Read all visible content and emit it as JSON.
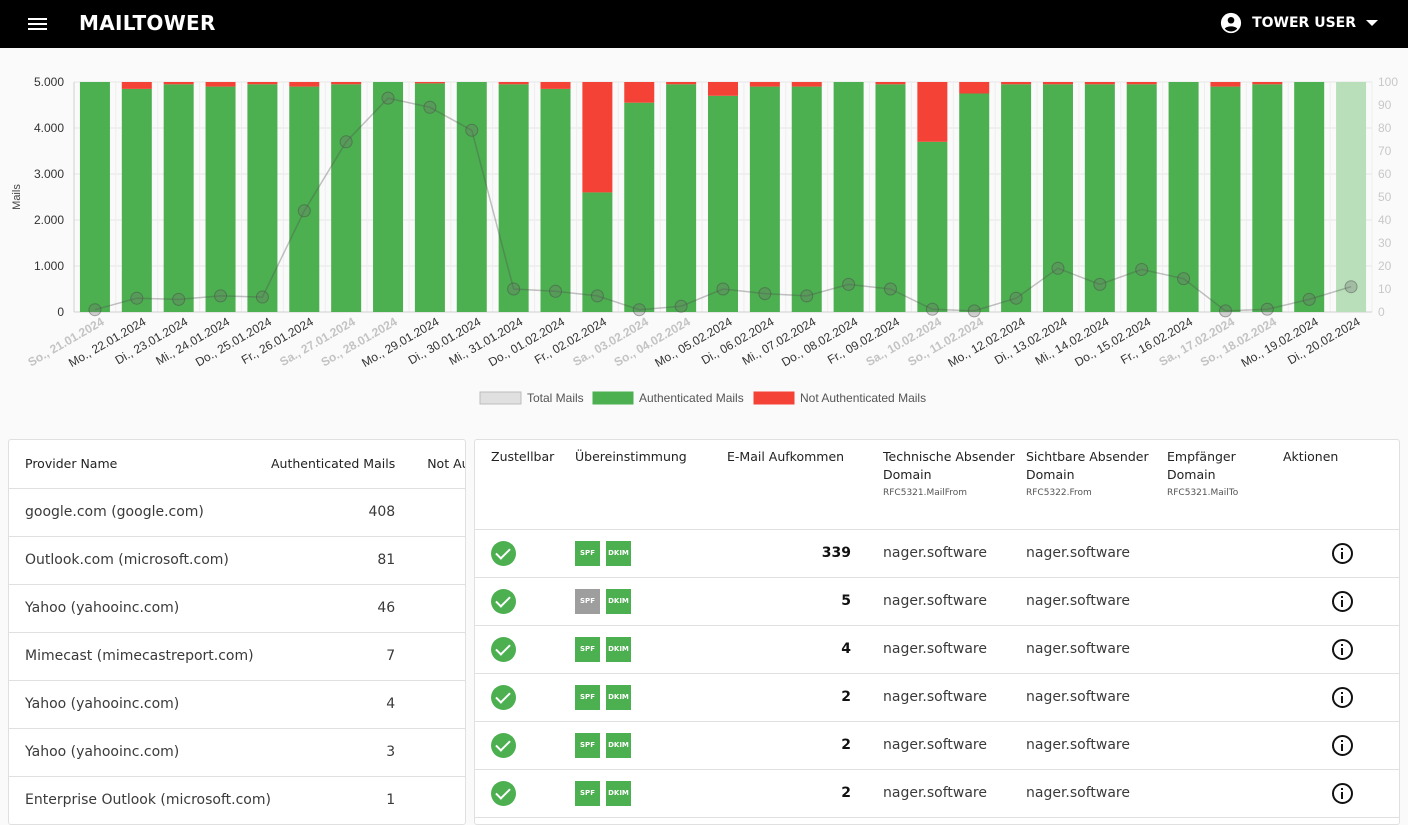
{
  "app": {
    "title": "MAILTOWER",
    "user": "TOWER USER"
  },
  "chart_data": {
    "type": "bar",
    "ylabel": "Mails",
    "y_left_lim": [
      0,
      5000
    ],
    "y_left_ticks": [
      "0",
      "1.000",
      "2.000",
      "3.000",
      "4.000",
      "5.000"
    ],
    "y_right_lim": [
      0,
      100
    ],
    "y_right_ticks": [
      "0",
      "10",
      "20",
      "30",
      "40",
      "50",
      "60",
      "70",
      "80",
      "90",
      "100"
    ],
    "stacked": true,
    "categories": [
      "So., 21.01.2024",
      "Mo., 22.01.2024",
      "Di., 23.01.2024",
      "Mi., 24.01.2024",
      "Do., 25.01.2024",
      "Fr., 26.01.2024",
      "Sa., 27.01.2024",
      "So., 28.01.2024",
      "Mo., 29.01.2024",
      "Di., 30.01.2024",
      "Mi., 31.01.2024",
      "Do., 01.02.2024",
      "Fr., 02.02.2024",
      "Sa., 03.02.2024",
      "So., 04.02.2024",
      "Mo., 05.02.2024",
      "Di., 06.02.2024",
      "Mi., 07.02.2024",
      "Do., 08.02.2024",
      "Fr., 09.02.2024",
      "Sa., 10.02.2024",
      "So., 11.02.2024",
      "Mo., 12.02.2024",
      "Di., 13.02.2024",
      "Mi., 14.02.2024",
      "Do., 15.02.2024",
      "Fr., 16.02.2024",
      "Sa., 17.02.2024",
      "So., 18.02.2024",
      "Mo., 19.02.2024",
      "Di., 20.02.2024"
    ],
    "weekend": [
      true,
      false,
      false,
      false,
      false,
      false,
      true,
      true,
      false,
      false,
      false,
      false,
      false,
      true,
      true,
      false,
      false,
      false,
      false,
      false,
      true,
      true,
      false,
      false,
      false,
      false,
      false,
      true,
      true,
      false,
      false
    ],
    "series": [
      {
        "name": "Total Mails",
        "axis": "right",
        "type": "line",
        "color": "#9e9e9e",
        "values": [
          1,
          6,
          5.5,
          7,
          6.5,
          44,
          74,
          93,
          89,
          79,
          10,
          9,
          7,
          1,
          2.5,
          10,
          8,
          7,
          12,
          10,
          1.2,
          0.5,
          6,
          19,
          12,
          18.5,
          14.5,
          0.5,
          1.2,
          5.5,
          11
        ]
      },
      {
        "name": "Authenticated Mails",
        "axis": "left",
        "color": "#4caf50",
        "values": [
          5000,
          4850,
          4950,
          4900,
          4950,
          4900,
          4950,
          5000,
          4970,
          5000,
          4950,
          4850,
          2600,
          4550,
          4950,
          4700,
          4900,
          4900,
          5000,
          4950,
          3700,
          4750,
          4950,
          4950,
          4950,
          4950,
          5000,
          4900,
          4950,
          5000,
          5000
        ]
      },
      {
        "name": "Not Authenticated Mails",
        "axis": "left",
        "color": "#f44336",
        "values": [
          0,
          150,
          50,
          100,
          50,
          100,
          50,
          0,
          30,
          0,
          50,
          150,
          2400,
          450,
          50,
          300,
          100,
          100,
          0,
          50,
          1300,
          250,
          50,
          50,
          50,
          50,
          0,
          100,
          50,
          0,
          0
        ]
      }
    ],
    "last_bar_faded": true,
    "legend": [
      "Total Mails",
      "Authenticated Mails",
      "Not Authenticated Mails"
    ],
    "legend_position": "bottom"
  },
  "providers": {
    "headers": [
      "Provider Name",
      "Authenticated Mails",
      "Not Authenticated Mails"
    ],
    "rows": [
      {
        "name": "google.com (google.com)",
        "auth": "408"
      },
      {
        "name": "Outlook.com (microsoft.com)",
        "auth": "81"
      },
      {
        "name": "Yahoo (yahooinc.com)",
        "auth": "46"
      },
      {
        "name": "Mimecast (mimecastreport.com)",
        "auth": "7"
      },
      {
        "name": "Yahoo (yahooinc.com)",
        "auth": "4"
      },
      {
        "name": "Yahoo (yahooinc.com)",
        "auth": "3"
      },
      {
        "name": "Enterprise Outlook (microsoft.com)",
        "auth": "1"
      }
    ]
  },
  "reports": {
    "headers": {
      "deliverable": "Zustellbar",
      "match": "Übereinstimmung",
      "volume": "E-Mail Aufkommen",
      "tech": "Technische Absender Domain",
      "tech_sub": "RFC5321.MailFrom",
      "visible": "Sichtbare Absender Domain",
      "visible_sub": "RFC5322.From",
      "recipient": "Empfänger Domain",
      "recipient_sub": "RFC5321.MailTo",
      "actions": "Aktionen"
    },
    "spf_label": "SPF",
    "dkim_label": "DKIM",
    "rows": [
      {
        "volume": "339",
        "tech": "nager.software",
        "visible": "nager.software",
        "spf": "pass",
        "dkim": "pass"
      },
      {
        "volume": "5",
        "tech": "nager.software",
        "visible": "nager.software",
        "spf": "fail",
        "dkim": "pass"
      },
      {
        "volume": "4",
        "tech": "nager.software",
        "visible": "nager.software",
        "spf": "pass",
        "dkim": "pass"
      },
      {
        "volume": "2",
        "tech": "nager.software",
        "visible": "nager.software",
        "spf": "pass",
        "dkim": "pass"
      },
      {
        "volume": "2",
        "tech": "nager.software",
        "visible": "nager.software",
        "spf": "pass",
        "dkim": "pass"
      },
      {
        "volume": "2",
        "tech": "nager.software",
        "visible": "nager.software",
        "spf": "pass",
        "dkim": "pass"
      }
    ]
  },
  "icons": {
    "menu": "menu-icon",
    "user": "account-circle-icon",
    "caret": "arrow-drop-down-icon",
    "check": "check-circle-icon",
    "info": "info-outline-icon"
  }
}
